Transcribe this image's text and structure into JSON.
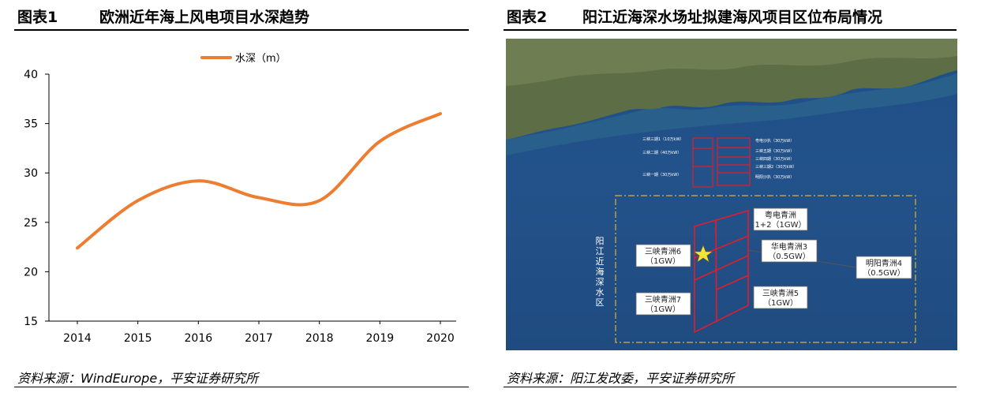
{
  "left_panel": {
    "figure_label": "图表1",
    "title": "欧洲近年海上风电项目水深趋势",
    "source": "资料来源：WindEurope，平安证券研究所"
  },
  "right_panel": {
    "figure_label": "图表2",
    "title": "阳江近海深水场址拟建海风项目区位布局情况",
    "source": "资料来源：阳江发改委，平安证券研究所",
    "map": {
      "zone_label": "阳江近海深水区",
      "near_shore_projects": [
        "三峡三期1（10万kW）",
        "粤电沙扒（30万kW）",
        "三峡二期（40万kW）",
        "三峡五期（30万kW）",
        "三峡四期（30万kW）",
        "三峡三期2（30万kW）",
        "三峡一期（30万kW）",
        "明阳沙扒（30万kW）"
      ],
      "callouts": [
        {
          "name": "三峡青洲6",
          "capacity": "（1GW）"
        },
        {
          "name": "三峡青洲7",
          "capacity": "（1GW）"
        },
        {
          "name": "粤电青洲",
          "capacity": "1+2（1GW）"
        },
        {
          "name": "华电青洲3",
          "capacity": "（0.5GW）"
        },
        {
          "name": "明阳青洲4",
          "capacity": "（0.5GW）"
        },
        {
          "name": "三峡青洲5",
          "capacity": "（1GW）"
        }
      ],
      "colors": {
        "sea": "#23528a",
        "project_outline": "#e21d2a",
        "zone_outline": "#e0b03a",
        "marker": "#f7e43a"
      },
      "marker_icon": "star-icon"
    }
  },
  "chart_data": {
    "type": "line",
    "categories": [
      "2014",
      "2015",
      "2016",
      "2017",
      "2018",
      "2019",
      "2020"
    ],
    "series": [
      {
        "name": "水深（m）",
        "values": [
          22.4,
          27.2,
          29.2,
          27.5,
          27.2,
          33.2,
          36.0
        ],
        "color": "#ed7d31"
      }
    ],
    "ylim": [
      15,
      40
    ],
    "yticks": [
      15,
      20,
      25,
      30,
      35,
      40
    ],
    "legend_position": "top-center",
    "smooth": true,
    "grid": false
  }
}
